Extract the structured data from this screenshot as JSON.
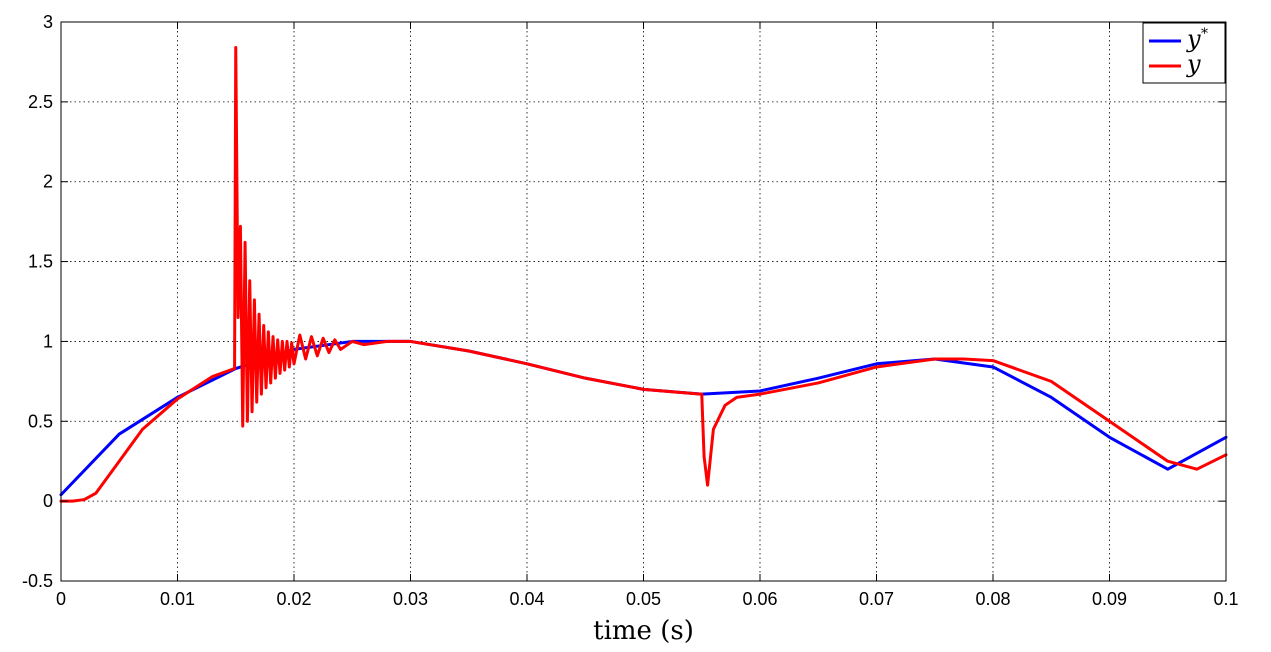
{
  "chart_data": {
    "type": "line",
    "title": "",
    "xlabel": "time (s)",
    "ylabel": "",
    "xlim": [
      0,
      0.1
    ],
    "ylim": [
      -0.5,
      3
    ],
    "x_ticks": [
      0,
      0.01,
      0.02,
      0.03,
      0.04,
      0.05,
      0.06,
      0.07,
      0.08,
      0.09,
      0.1
    ],
    "x_tick_labels": [
      "0",
      "0.01",
      "0.02",
      "0.03",
      "0.04",
      "0.05",
      "0.06",
      "0.07",
      "0.08",
      "0.09",
      "0.1"
    ],
    "y_ticks": [
      -0.5,
      0,
      0.5,
      1,
      1.5,
      2,
      2.5,
      3
    ],
    "y_tick_labels": [
      "-0.5",
      "0",
      "0.5",
      "1",
      "1.5",
      "2",
      "2.5",
      "3"
    ],
    "grid": true,
    "legend": {
      "position": "top-right",
      "entries": [
        {
          "base": "y",
          "sup": "*",
          "color": "#0000ff"
        },
        {
          "base": "y",
          "sup": "",
          "color": "#ff0000"
        }
      ]
    },
    "series": [
      {
        "color": "#0000ff",
        "x": [
          0,
          0.005,
          0.01,
          0.015,
          0.02,
          0.025,
          0.03,
          0.035,
          0.04,
          0.045,
          0.05,
          0.055,
          0.06,
          0.065,
          0.07,
          0.075,
          0.08,
          0.085,
          0.09,
          0.095,
          0.1
        ],
        "y": [
          0.04,
          0.42,
          0.65,
          0.83,
          0.95,
          1.0,
          1.0,
          0.94,
          0.86,
          0.77,
          0.7,
          0.67,
          0.69,
          0.77,
          0.86,
          0.89,
          0.84,
          0.65,
          0.4,
          0.2,
          0.4
        ]
      },
      {
        "color": "#ff0000",
        "x": [
          0,
          0.001,
          0.002,
          0.003,
          0.005,
          0.007,
          0.01,
          0.013,
          0.0149,
          0.015,
          0.0152,
          0.0154,
          0.0156,
          0.0158,
          0.016,
          0.0162,
          0.0164,
          0.0166,
          0.0168,
          0.017,
          0.0172,
          0.0174,
          0.0176,
          0.0178,
          0.018,
          0.0182,
          0.0184,
          0.0186,
          0.0188,
          0.019,
          0.0192,
          0.0194,
          0.0196,
          0.0198,
          0.02,
          0.0205,
          0.021,
          0.0215,
          0.022,
          0.0225,
          0.023,
          0.0235,
          0.024,
          0.025,
          0.026,
          0.028,
          0.03,
          0.035,
          0.04,
          0.045,
          0.05,
          0.0549,
          0.055,
          0.0552,
          0.0555,
          0.056,
          0.057,
          0.058,
          0.06,
          0.065,
          0.07,
          0.075,
          0.0775,
          0.08,
          0.085,
          0.09,
          0.095,
          0.0975,
          0.1
        ],
        "y": [
          0.0,
          0.0,
          0.01,
          0.05,
          0.25,
          0.45,
          0.64,
          0.78,
          0.83,
          2.84,
          1.15,
          1.72,
          0.47,
          1.62,
          0.5,
          1.38,
          0.56,
          1.26,
          0.62,
          1.17,
          0.67,
          1.1,
          0.71,
          1.06,
          0.74,
          1.03,
          0.77,
          1.01,
          0.8,
          1.0,
          0.82,
          1.0,
          0.84,
          0.99,
          0.86,
          1.04,
          0.89,
          1.03,
          0.91,
          1.02,
          0.93,
          1.01,
          0.95,
          1.0,
          0.98,
          1.0,
          1.0,
          0.94,
          0.86,
          0.77,
          0.7,
          0.67,
          0.67,
          0.28,
          0.1,
          0.45,
          0.6,
          0.65,
          0.67,
          0.74,
          0.84,
          0.89,
          0.89,
          0.88,
          0.75,
          0.5,
          0.25,
          0.2,
          0.29
        ]
      }
    ]
  }
}
